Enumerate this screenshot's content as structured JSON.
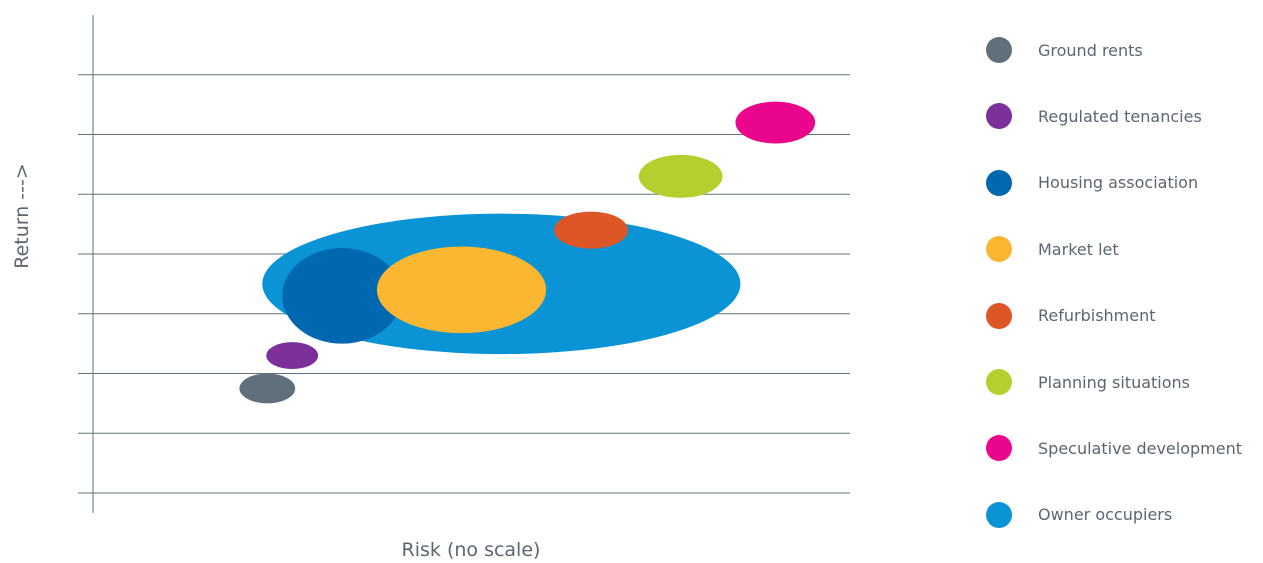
{
  "chart_data": {
    "type": "bubble",
    "xlabel": "Risk (no scale)",
    "ylabel": "Return   --->",
    "grid": true,
    "legend_position": "right",
    "series": [
      {
        "name": "Owner occupiers",
        "color": "#0a93d5",
        "x": 4.1,
        "y": 3.5,
        "rx": 2.4,
        "ry": 2.35
      },
      {
        "name": "Housing association",
        "color": "#0067b1",
        "x": 2.5,
        "y": 3.3,
        "rx": 0.6,
        "ry": 1.6
      },
      {
        "name": "Market let",
        "color": "#fbb731",
        "x": 3.7,
        "y": 3.4,
        "rx": 0.85,
        "ry": 1.45
      },
      {
        "name": "Regulated tenancies",
        "color": "#7b3199",
        "x": 2.0,
        "y": 2.3,
        "rx": 0.26,
        "ry": 0.45
      },
      {
        "name": "Ground rents",
        "color": "#5f707b",
        "x": 1.75,
        "y": 1.75,
        "rx": 0.28,
        "ry": 0.5
      },
      {
        "name": "Refurbishment",
        "color": "#de5626",
        "x": 5.0,
        "y": 4.4,
        "rx": 0.37,
        "ry": 0.62
      },
      {
        "name": "Planning situations",
        "color": "#b5cf2e",
        "x": 5.9,
        "y": 5.3,
        "rx": 0.42,
        "ry": 0.72
      },
      {
        "name": "Speculative development",
        "color": "#e9068c",
        "x": 6.85,
        "y": 6.2,
        "rx": 0.4,
        "ry": 0.7
      }
    ],
    "legend_order": [
      "Ground rents",
      "Regulated tenancies",
      "Housing association",
      "Market let",
      "Refurbishment",
      "Planning situations",
      "Speculative development",
      "Owner occupiers"
    ],
    "xlim": [
      0,
      7.6
    ],
    "ylim": [
      0,
      8
    ],
    "y_gridlines": [
      1,
      2,
      3,
      4,
      5,
      6,
      7
    ]
  }
}
